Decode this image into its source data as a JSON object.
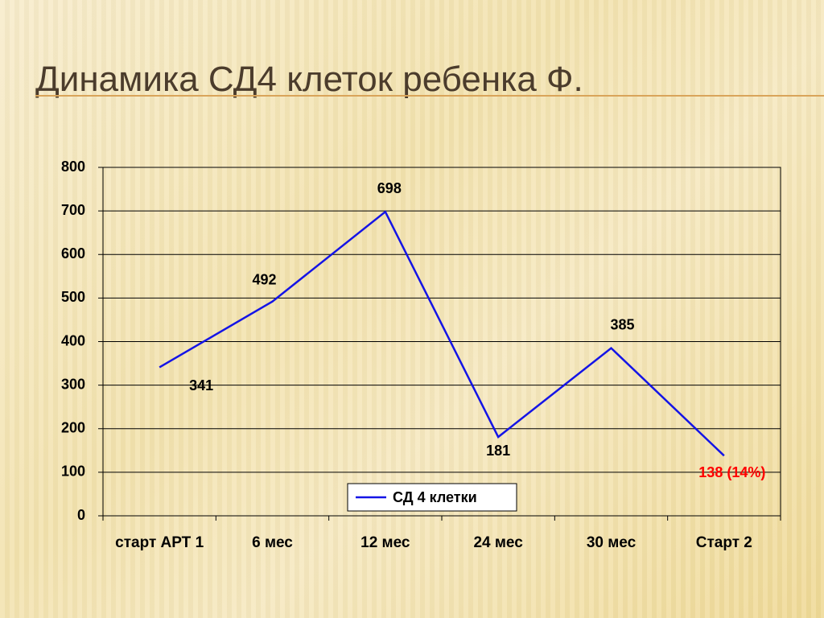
{
  "chart_data": {
    "type": "line",
    "title": "Динамика СД4 клеток ребенка Ф.",
    "categories": [
      "старт АРТ 1",
      "6 мес",
      "12 мес",
      "24 мес",
      "30 мес",
      "Старт 2"
    ],
    "series": [
      {
        "name": "СД 4 клетки",
        "color": "#1414e6",
        "values": [
          341,
          492,
          698,
          181,
          385,
          138
        ],
        "value_labels": [
          "341",
          "492",
          "698",
          "181",
          "385",
          "138 (14%)"
        ]
      }
    ],
    "ylim": [
      0,
      800
    ],
    "yticks": [
      0,
      100,
      200,
      300,
      400,
      500,
      600,
      700,
      800
    ],
    "grid": true,
    "legend": "bottom"
  }
}
